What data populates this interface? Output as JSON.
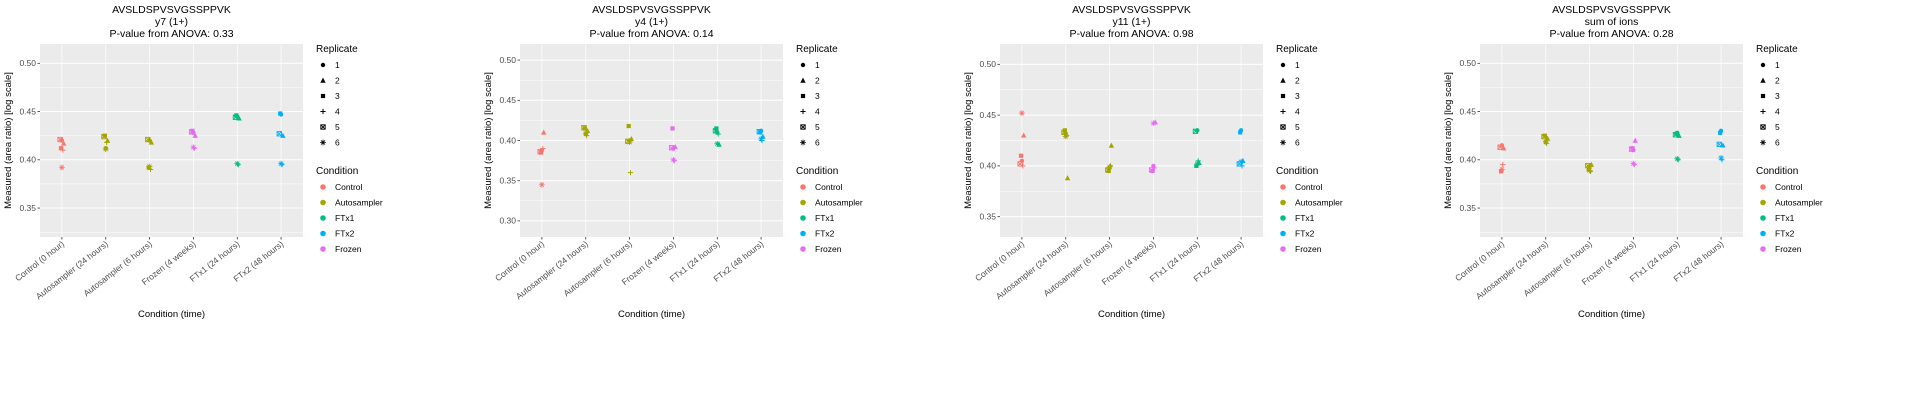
{
  "xlabel": "Condition (time)",
  "ylabel": "Measured (area ratio) [log scale]",
  "categories": [
    "Control (0 hour)",
    "Autosampler (24 hours)",
    "Autosampler (6 hours)",
    "Frozen (4 weeks)",
    "FTx1 (24 hours)",
    "FTx2 (48 hours)"
  ],
  "category_conditions": [
    "Control",
    "Autosampler",
    "Autosampler",
    "Frozen",
    "FTx1",
    "FTx2"
  ],
  "colors": {
    "panel_background": "#EBEBEB",
    "gridline": "#FFFFFF",
    "title_text": "#000000",
    "tick_text": "#4D4D4D"
  },
  "legend": {
    "replicate_title": "Replicate",
    "replicates": [
      "1",
      "2",
      "3",
      "4",
      "5",
      "6"
    ],
    "condition_title": "Condition",
    "conditions": [
      {
        "label": "Control",
        "color": "#F8766D"
      },
      {
        "label": "Autosampler",
        "color": "#A3A500"
      },
      {
        "label": "FTx1",
        "color": "#00BF7D"
      },
      {
        "label": "FTx2",
        "color": "#00B0F6"
      },
      {
        "label": "Frozen",
        "color": "#E76BF3"
      }
    ]
  },
  "points_columns": [
    "category_index",
    "replicate",
    "value"
  ],
  "chart_data": [
    {
      "type": "scatter",
      "title": "AVSLDSPVSVGSSPPVK",
      "subtitle": "y7 (1+)",
      "pvalue_line": "P-value from ANOVA: 0.33",
      "ylim": [
        0.32,
        0.52
      ],
      "yticks": [
        0.35,
        0.4,
        0.45,
        0.5
      ],
      "ytick_labels": [
        "0.35",
        "0.40",
        "0.45",
        "0.50"
      ],
      "points": [
        [
          0,
          1,
          0.42
        ],
        [
          0,
          2,
          0.417
        ],
        [
          0,
          3,
          0.412
        ],
        [
          0,
          4,
          0.41
        ],
        [
          0,
          5,
          0.421
        ],
        [
          0,
          6,
          0.392
        ],
        [
          1,
          1,
          0.412
        ],
        [
          1,
          2,
          0.42
        ],
        [
          1,
          3,
          0.425
        ],
        [
          1,
          4,
          0.418
        ],
        [
          1,
          5,
          0.424
        ],
        [
          1,
          6,
          0.411
        ],
        [
          2,
          1,
          0.42
        ],
        [
          2,
          2,
          0.418
        ],
        [
          2,
          3,
          0.392
        ],
        [
          2,
          4,
          0.39
        ],
        [
          2,
          5,
          0.421
        ],
        [
          2,
          6,
          0.393
        ],
        [
          3,
          1,
          0.428
        ],
        [
          3,
          2,
          0.425
        ],
        [
          3,
          3,
          0.43
        ],
        [
          3,
          4,
          0.412
        ],
        [
          3,
          5,
          0.429
        ],
        [
          3,
          6,
          0.413
        ],
        [
          4,
          1,
          0.445
        ],
        [
          4,
          2,
          0.443
        ],
        [
          4,
          3,
          0.446
        ],
        [
          4,
          4,
          0.395
        ],
        [
          4,
          5,
          0.444
        ],
        [
          4,
          6,
          0.396
        ],
        [
          5,
          1,
          0.447
        ],
        [
          5,
          2,
          0.425
        ],
        [
          5,
          3,
          0.448
        ],
        [
          5,
          4,
          0.395
        ],
        [
          5,
          5,
          0.427
        ],
        [
          5,
          6,
          0.396
        ]
      ]
    },
    {
      "type": "scatter",
      "title": "AVSLDSPVSVGSSPPVK",
      "subtitle": "y4 (1+)",
      "pvalue_line": "P-value from ANOVA: 0.14",
      "ylim": [
        0.28,
        0.52
      ],
      "yticks": [
        0.3,
        0.35,
        0.4,
        0.45,
        0.5
      ],
      "ytick_labels": [
        "0.30",
        "0.35",
        "0.40",
        "0.45",
        "0.50"
      ],
      "points": [
        [
          0,
          1,
          0.388
        ],
        [
          0,
          2,
          0.41
        ],
        [
          0,
          3,
          0.385
        ],
        [
          0,
          4,
          0.39
        ],
        [
          0,
          5,
          0.386
        ],
        [
          0,
          6,
          0.345
        ],
        [
          1,
          1,
          0.408
        ],
        [
          1,
          2,
          0.412
        ],
        [
          1,
          3,
          0.415
        ],
        [
          1,
          4,
          0.406
        ],
        [
          1,
          5,
          0.416
        ],
        [
          1,
          6,
          0.409
        ],
        [
          2,
          1,
          0.4
        ],
        [
          2,
          2,
          0.402
        ],
        [
          2,
          3,
          0.418
        ],
        [
          2,
          4,
          0.36
        ],
        [
          2,
          5,
          0.399
        ],
        [
          2,
          6,
          0.398
        ],
        [
          3,
          1,
          0.39
        ],
        [
          3,
          2,
          0.392
        ],
        [
          3,
          3,
          0.415
        ],
        [
          3,
          4,
          0.375
        ],
        [
          3,
          5,
          0.391
        ],
        [
          3,
          6,
          0.376
        ],
        [
          4,
          1,
          0.41
        ],
        [
          4,
          2,
          0.395
        ],
        [
          4,
          3,
          0.415
        ],
        [
          4,
          4,
          0.408
        ],
        [
          4,
          5,
          0.412
        ],
        [
          4,
          6,
          0.396
        ],
        [
          5,
          1,
          0.412
        ],
        [
          5,
          2,
          0.405
        ],
        [
          5,
          3,
          0.41
        ],
        [
          5,
          4,
          0.4
        ],
        [
          5,
          5,
          0.411
        ],
        [
          5,
          6,
          0.402
        ]
      ]
    },
    {
      "type": "scatter",
      "title": "AVSLDSPVSVGSSPPVK",
      "subtitle": "y11 (1+)",
      "pvalue_line": "P-value from ANOVA: 0.98",
      "ylim": [
        0.33,
        0.52
      ],
      "yticks": [
        0.35,
        0.4,
        0.45,
        0.5
      ],
      "ytick_labels": [
        "0.35",
        "0.40",
        "0.45",
        "0.50"
      ],
      "points": [
        [
          0,
          1,
          0.405
        ],
        [
          0,
          2,
          0.43
        ],
        [
          0,
          3,
          0.41
        ],
        [
          0,
          4,
          0.4
        ],
        [
          0,
          5,
          0.402
        ],
        [
          0,
          6,
          0.452
        ],
        [
          1,
          1,
          0.432
        ],
        [
          1,
          2,
          0.388
        ],
        [
          1,
          3,
          0.435
        ],
        [
          1,
          4,
          0.43
        ],
        [
          1,
          5,
          0.433
        ],
        [
          1,
          6,
          0.429
        ],
        [
          2,
          1,
          0.398
        ],
        [
          2,
          2,
          0.42
        ],
        [
          2,
          3,
          0.395
        ],
        [
          2,
          4,
          0.4
        ],
        [
          2,
          5,
          0.396
        ],
        [
          2,
          6,
          0.399
        ],
        [
          3,
          1,
          0.4
        ],
        [
          3,
          2,
          0.443
        ],
        [
          3,
          3,
          0.395
        ],
        [
          3,
          4,
          0.398
        ],
        [
          3,
          5,
          0.396
        ],
        [
          3,
          6,
          0.442
        ],
        [
          4,
          1,
          0.435
        ],
        [
          4,
          2,
          0.403
        ],
        [
          4,
          3,
          0.4
        ],
        [
          4,
          4,
          0.405
        ],
        [
          4,
          5,
          0.434
        ],
        [
          4,
          6,
          0.402
        ],
        [
          5,
          1,
          0.435
        ],
        [
          5,
          2,
          0.405
        ],
        [
          5,
          3,
          0.433
        ],
        [
          5,
          4,
          0.4
        ],
        [
          5,
          5,
          0.402
        ],
        [
          5,
          6,
          0.404
        ]
      ]
    },
    {
      "type": "scatter",
      "title": "AVSLDSPVSVGSSPPVK",
      "subtitle": "sum of ions",
      "pvalue_line": "P-value from ANOVA: 0.28",
      "ylim": [
        0.32,
        0.52
      ],
      "yticks": [
        0.35,
        0.4,
        0.45,
        0.5
      ],
      "ytick_labels": [
        "0.35",
        "0.40",
        "0.45",
        "0.50"
      ],
      "points": [
        [
          0,
          1,
          0.415
        ],
        [
          0,
          2,
          0.412
        ],
        [
          0,
          3,
          0.388
        ],
        [
          0,
          4,
          0.395
        ],
        [
          0,
          5,
          0.413
        ],
        [
          0,
          6,
          0.39
        ],
        [
          1,
          1,
          0.418
        ],
        [
          1,
          2,
          0.422
        ],
        [
          1,
          3,
          0.425
        ],
        [
          1,
          4,
          0.417
        ],
        [
          1,
          5,
          0.424
        ],
        [
          1,
          6,
          0.419
        ],
        [
          2,
          1,
          0.393
        ],
        [
          2,
          2,
          0.395
        ],
        [
          2,
          3,
          0.39
        ],
        [
          2,
          4,
          0.388
        ],
        [
          2,
          5,
          0.394
        ],
        [
          2,
          6,
          0.389
        ],
        [
          3,
          1,
          0.41
        ],
        [
          3,
          2,
          0.42
        ],
        [
          3,
          3,
          0.412
        ],
        [
          3,
          4,
          0.395
        ],
        [
          3,
          5,
          0.411
        ],
        [
          3,
          6,
          0.396
        ],
        [
          4,
          1,
          0.428
        ],
        [
          4,
          2,
          0.425
        ],
        [
          4,
          3,
          0.427
        ],
        [
          4,
          4,
          0.4
        ],
        [
          4,
          5,
          0.426
        ],
        [
          4,
          6,
          0.401
        ],
        [
          5,
          1,
          0.43
        ],
        [
          5,
          2,
          0.415
        ],
        [
          5,
          3,
          0.428
        ],
        [
          5,
          4,
          0.4
        ],
        [
          5,
          5,
          0.416
        ],
        [
          5,
          6,
          0.402
        ]
      ]
    }
  ]
}
